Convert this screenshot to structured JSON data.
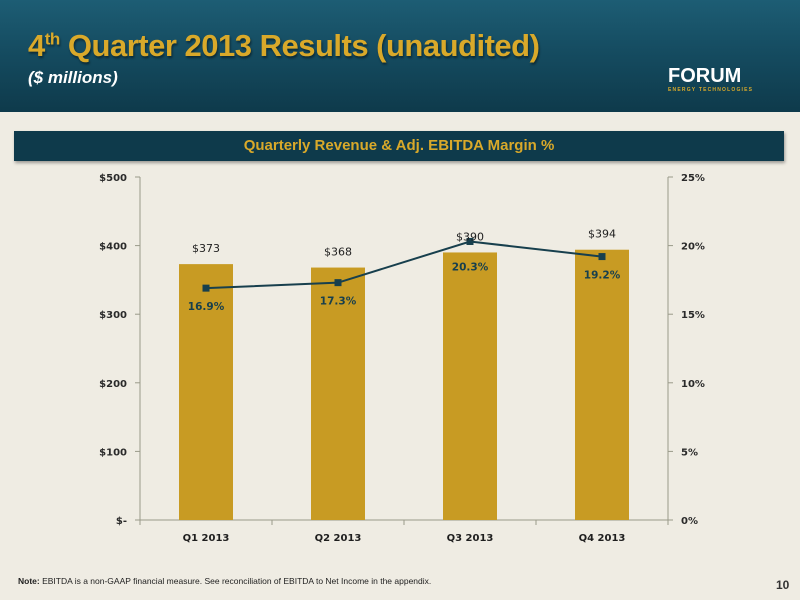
{
  "header": {
    "title_main": "4",
    "title_sup": "th",
    "title_rest": " Quarter 2013 Results (unaudited)",
    "subtitle": "($ millions)"
  },
  "logo": {
    "text": "FORUM",
    "tagline": "ENERGY TECHNOLOGIES"
  },
  "colors": {
    "bar": "#c89b23",
    "line": "#173f4d",
    "header_bg": "#0e3a4b",
    "accent": "#d9a92a"
  },
  "chart_data": {
    "type": "bar",
    "title": "Quarterly Revenue & Adj. EBITDA Margin %",
    "categories": [
      "Q1 2013",
      "Q2 2013",
      "Q3 2013",
      "Q4 2013"
    ],
    "series": [
      {
        "values": [
          373,
          368,
          390,
          394
        ],
        "labels": [
          "$373",
          "$368",
          "$390",
          "$394"
        ],
        "axis": "left",
        "kind": "bar"
      },
      {
        "values": [
          16.9,
          17.3,
          20.3,
          19.2
        ],
        "labels": [
          "16.9%",
          "17.3%",
          "20.3%",
          "19.2%"
        ],
        "axis": "right",
        "kind": "line"
      }
    ],
    "ylim": [
      0,
      500
    ],
    "y2lim": [
      0,
      25
    ],
    "y_ticks": [
      "$-",
      "$100",
      "$200",
      "$300",
      "$400",
      "$500"
    ],
    "y2_ticks": [
      "0%",
      "5%",
      "10%",
      "15%",
      "20%",
      "25%"
    ],
    "grid": false,
    "legend": "none"
  },
  "footer": {
    "note_label": "Note:",
    "note_text": " EBITDA is a non-GAAP financial measure. See reconciliation of EBITDA to Net Income in the appendix.",
    "page_number": "10"
  }
}
